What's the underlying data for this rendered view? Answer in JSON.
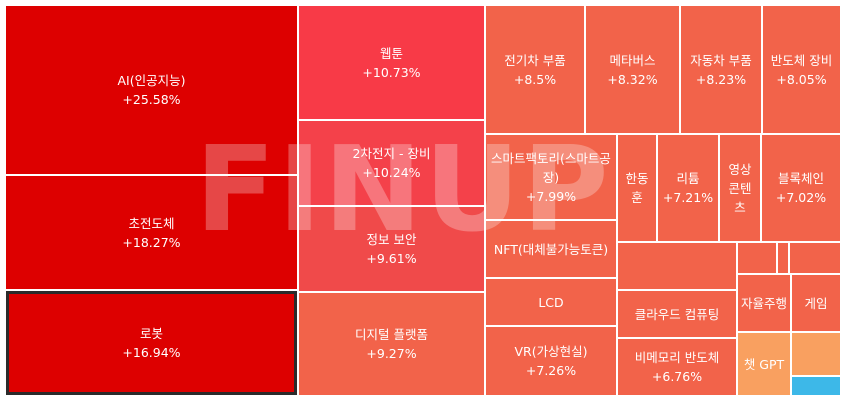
{
  "chart_data": {
    "type": "treemap",
    "watermark": "FINUP",
    "categories": [
      "AI(인공지능)",
      "초전도체",
      "로봇",
      "웹툰",
      "2차전지 - 장비",
      "정보 보안",
      "디지털 플랫폼",
      "전기차 부품",
      "메타버스",
      "자동차 부품",
      "반도체 장비",
      "스마트팩토리(스마트공장)",
      "NFT(대체불가능토큰)",
      "LCD",
      "VR(가상현실)",
      "한동훈",
      "리튬",
      "영상콘텐츠",
      "블록체인",
      "클라우드 컴퓨팅",
      "비메모리 반도체",
      "자율주행",
      "게임",
      "챗 GPT"
    ],
    "values": [
      25.58,
      18.27,
      16.94,
      10.73,
      10.24,
      9.61,
      9.27,
      8.5,
      8.32,
      8.23,
      8.05,
      7.99,
      null,
      null,
      7.26,
      null,
      7.21,
      null,
      7.02,
      null,
      6.76,
      null,
      null,
      null
    ],
    "value_labels": [
      "+25.58%",
      "+18.27%",
      "+16.94%",
      "+10.73%",
      "+10.24%",
      "+9.61%",
      "+9.27%",
      "+8.5%",
      "+8.32%",
      "+8.23%",
      "+8.05%",
      "+7.99%",
      null,
      null,
      "+7.26%",
      null,
      "+7.21%",
      null,
      "+7.02%",
      null,
      "+6.76%",
      null,
      null,
      null
    ],
    "colors": [
      "#dd0000",
      "#dd0000",
      "#dd0000",
      "#f83a47",
      "#f4414a",
      "#f04a4a",
      "#f2634a",
      "#f2634a",
      "#f2634a",
      "#f2634a",
      "#f2634a",
      "#f2634a",
      "#f2634a",
      "#f2634a",
      "#f2634a",
      "#f2634a",
      "#f2634a",
      "#f2634a",
      "#f2634a",
      "#f2634a",
      "#f2634a",
      "#f2634a",
      "#f2634a",
      "#f9a060"
    ]
  }
}
